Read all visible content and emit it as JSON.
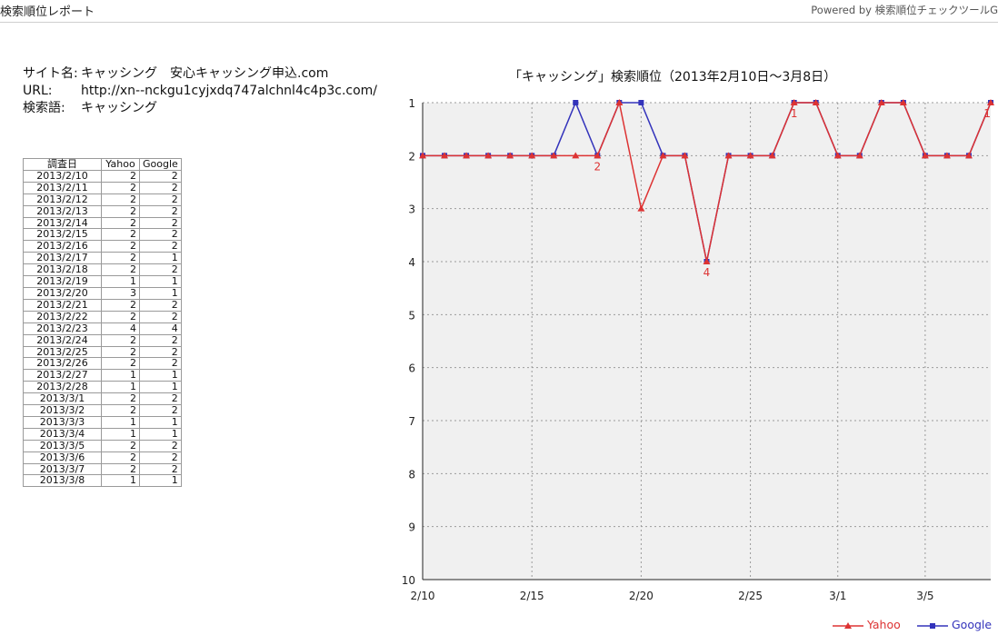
{
  "header": {
    "title": "検索順位レポート",
    "powered_by": "Powered by 検索順位チェックツールG"
  },
  "site": {
    "site_label": "サイト名:",
    "site_name": "キャッシング　安心キャッシング申込.com",
    "url_label": "URL:",
    "url": "http://xn--nckgu1cyjxdq747alchnl4c4p3c.com/",
    "keyword_label": "検索語:",
    "keyword": "キャッシング"
  },
  "table": {
    "headers": [
      "調査日",
      "Yahoo",
      "Google"
    ],
    "rows": [
      [
        "2013/2/10",
        "2",
        "2"
      ],
      [
        "2013/2/11",
        "2",
        "2"
      ],
      [
        "2013/2/12",
        "2",
        "2"
      ],
      [
        "2013/2/13",
        "2",
        "2"
      ],
      [
        "2013/2/14",
        "2",
        "2"
      ],
      [
        "2013/2/15",
        "2",
        "2"
      ],
      [
        "2013/2/16",
        "2",
        "2"
      ],
      [
        "2013/2/17",
        "2",
        "1"
      ],
      [
        "2013/2/18",
        "2",
        "2"
      ],
      [
        "2013/2/19",
        "1",
        "1"
      ],
      [
        "2013/2/20",
        "3",
        "1"
      ],
      [
        "2013/2/21",
        "2",
        "2"
      ],
      [
        "2013/2/22",
        "2",
        "2"
      ],
      [
        "2013/2/23",
        "4",
        "4"
      ],
      [
        "2013/2/24",
        "2",
        "2"
      ],
      [
        "2013/2/25",
        "2",
        "2"
      ],
      [
        "2013/2/26",
        "2",
        "2"
      ],
      [
        "2013/2/27",
        "1",
        "1"
      ],
      [
        "2013/2/28",
        "1",
        "1"
      ],
      [
        "2013/3/1",
        "2",
        "2"
      ],
      [
        "2013/3/2",
        "2",
        "2"
      ],
      [
        "2013/3/3",
        "1",
        "1"
      ],
      [
        "2013/3/4",
        "1",
        "1"
      ],
      [
        "2013/3/5",
        "2",
        "2"
      ],
      [
        "2013/3/6",
        "2",
        "2"
      ],
      [
        "2013/3/7",
        "2",
        "2"
      ],
      [
        "2013/3/8",
        "1",
        "1"
      ]
    ]
  },
  "chart_data": {
    "type": "line",
    "title": "「キャッシング」検索順位（2013年2月10日〜3月8日）",
    "x": [
      "2013/2/10",
      "2013/2/11",
      "2013/2/12",
      "2013/2/13",
      "2013/2/14",
      "2013/2/15",
      "2013/2/16",
      "2013/2/17",
      "2013/2/18",
      "2013/2/19",
      "2013/2/20",
      "2013/2/21",
      "2013/2/22",
      "2013/2/23",
      "2013/2/24",
      "2013/2/25",
      "2013/2/26",
      "2013/2/27",
      "2013/2/28",
      "2013/3/1",
      "2013/3/2",
      "2013/3/3",
      "2013/3/4",
      "2013/3/5",
      "2013/3/6",
      "2013/3/7",
      "2013/3/8"
    ],
    "x_tick_labels": [
      {
        "index": 0,
        "label": "2/10"
      },
      {
        "index": 5,
        "label": "2/15"
      },
      {
        "index": 10,
        "label": "2/20"
      },
      {
        "index": 15,
        "label": "2/25"
      },
      {
        "index": 19,
        "label": "3/1"
      },
      {
        "index": 23,
        "label": "3/5"
      }
    ],
    "y_ticks": [
      1,
      2,
      3,
      4,
      5,
      6,
      7,
      8,
      9,
      10
    ],
    "ylim": [
      1,
      10
    ],
    "y_inverted": true,
    "grid": true,
    "legend_position": "bottom-right",
    "series": [
      {
        "name": "Yahoo",
        "color": "#dd3333",
        "marker": "triangle",
        "values": [
          2,
          2,
          2,
          2,
          2,
          2,
          2,
          2,
          2,
          1,
          3,
          2,
          2,
          4,
          2,
          2,
          2,
          1,
          1,
          2,
          2,
          1,
          1,
          2,
          2,
          2,
          1
        ]
      },
      {
        "name": "Google",
        "color": "#3333bb",
        "marker": "square",
        "values": [
          2,
          2,
          2,
          2,
          2,
          2,
          2,
          1,
          2,
          1,
          1,
          2,
          2,
          4,
          2,
          2,
          2,
          1,
          1,
          2,
          2,
          1,
          1,
          2,
          2,
          2,
          1
        ]
      }
    ],
    "annotations": [
      {
        "series": "Yahoo",
        "index": 8,
        "label": "2"
      },
      {
        "series": "Yahoo",
        "index": 13,
        "label": "4"
      },
      {
        "series": "Yahoo",
        "index": 17,
        "label": "1"
      },
      {
        "series": "Yahoo",
        "index": 26,
        "label": "1"
      }
    ]
  }
}
